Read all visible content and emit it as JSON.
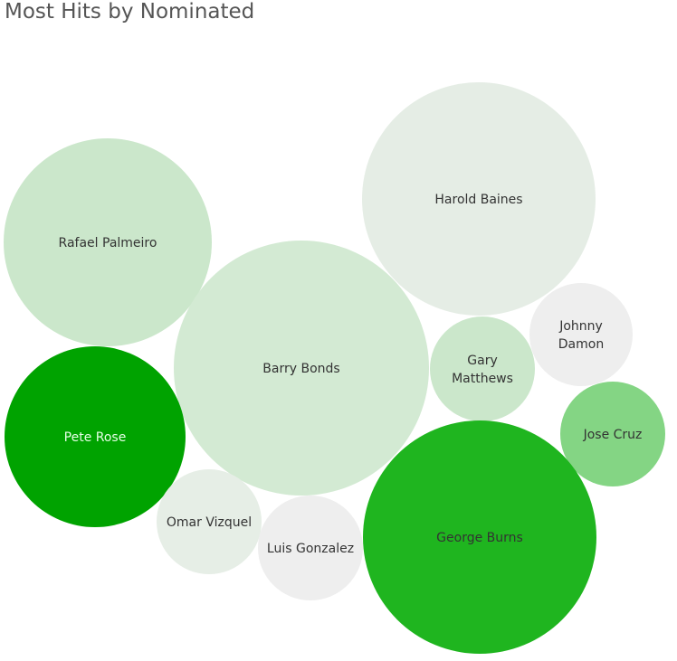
{
  "title": "Most Hits by Nominated",
  "chart_data": {
    "type": "bubble",
    "title": "Most Hits by Nominated",
    "bubbles": [
      {
        "label": [
          "Harold Baines"
        ],
        "color": "#e5ede5",
        "text_color": "#333333"
      },
      {
        "label": [
          "Rafael Palmeiro"
        ],
        "color": "#cbe7cb",
        "text_color": "#333333"
      },
      {
        "label": [
          "Barry Bonds"
        ],
        "color": "#d3ead3",
        "text_color": "#333333"
      },
      {
        "label": [
          "Johnny",
          "Damon"
        ],
        "color": "#eeeeee",
        "text_color": "#333333"
      },
      {
        "label": [
          "Gary",
          "Matthews"
        ],
        "color": "#cbe7cb",
        "text_color": "#333333"
      },
      {
        "label": [
          "Pete Rose"
        ],
        "color": "#00a300",
        "text_color": "#e6ffe6"
      },
      {
        "label": [
          "Jose Cruz"
        ],
        "color": "#84d584",
        "text_color": "#333333"
      },
      {
        "label": [
          "Omar Vizquel"
        ],
        "color": "#e6eee6",
        "text_color": "#333333"
      },
      {
        "label": [
          "Luis Gonzalez"
        ],
        "color": "#eeeeee",
        "text_color": "#333333"
      },
      {
        "label": [
          "George Burns"
        ],
        "color": "#1fb51f",
        "text_color": "#333333"
      }
    ]
  }
}
